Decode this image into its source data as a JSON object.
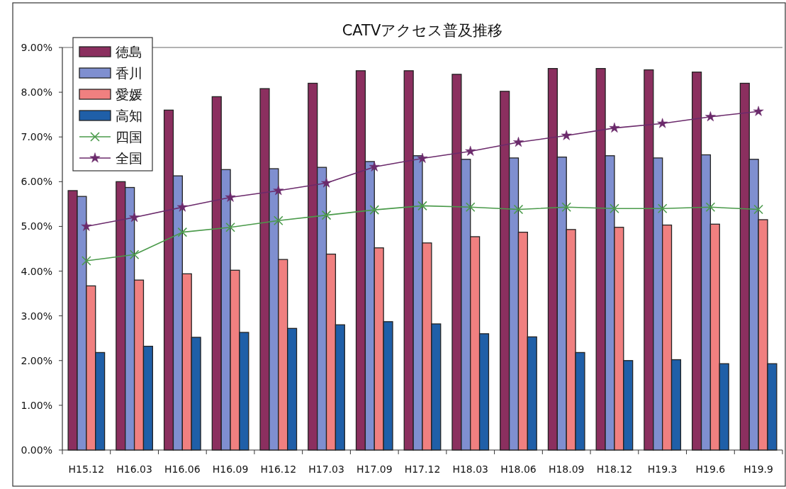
{
  "chart_data": {
    "type": "bar",
    "title": "CATVアクセス普及推移",
    "categories": [
      "H15.12",
      "H16.03",
      "H16.06",
      "H16.09",
      "H16.12",
      "H17.03",
      "H17.09",
      "H17.12",
      "H18.03",
      "H18.06",
      "H18.09",
      "H18.12",
      "H19.3",
      "H19.6",
      "H19.9"
    ],
    "series": [
      {
        "name": "徳島",
        "color": "#8b2f5f",
        "values": [
          5.8,
          6.0,
          7.6,
          7.9,
          8.08,
          8.2,
          8.48,
          8.48,
          8.4,
          8.02,
          8.53,
          8.53,
          8.5,
          8.45,
          8.2
        ]
      },
      {
        "name": "香川",
        "color": "#7f8fd0",
        "values": [
          5.67,
          5.87,
          6.13,
          6.27,
          6.29,
          6.32,
          6.45,
          6.58,
          6.5,
          6.53,
          6.55,
          6.58,
          6.53,
          6.6,
          6.5
        ]
      },
      {
        "name": "愛媛",
        "color": "#f08080",
        "values": [
          3.67,
          3.8,
          3.94,
          4.02,
          4.26,
          4.38,
          4.52,
          4.63,
          4.77,
          4.87,
          4.93,
          4.98,
          5.03,
          5.05,
          5.15
        ]
      },
      {
        "name": "高知",
        "color": "#1f5fa8",
        "values": [
          2.18,
          2.32,
          2.52,
          2.63,
          2.72,
          2.8,
          2.87,
          2.82,
          2.6,
          2.53,
          2.18,
          2.0,
          2.02,
          1.93,
          1.93
        ]
      },
      {
        "name": "四国",
        "type": "line",
        "marker": "cross",
        "color": "#4a9a4a",
        "values": [
          4.23,
          4.37,
          4.87,
          4.98,
          5.13,
          5.25,
          5.37,
          5.46,
          5.43,
          5.38,
          5.43,
          5.4,
          5.4,
          5.43,
          5.38
        ]
      },
      {
        "name": "全国",
        "type": "line",
        "marker": "star",
        "color": "#6b2a6b",
        "values": [
          5.0,
          5.2,
          5.43,
          5.65,
          5.8,
          5.97,
          6.33,
          6.52,
          6.68,
          6.88,
          7.03,
          7.2,
          7.3,
          7.45,
          7.57
        ]
      }
    ],
    "ylim": [
      0,
      9
    ],
    "yticks": [
      {
        "value": 0,
        "label": "0.00%"
      },
      {
        "value": 1,
        "label": "1.00%"
      },
      {
        "value": 2,
        "label": "2.00%"
      },
      {
        "value": 3,
        "label": "3.00%"
      },
      {
        "value": 4,
        "label": "4.00%"
      },
      {
        "value": 5,
        "label": "5.00%"
      },
      {
        "value": 6,
        "label": "6.00%"
      },
      {
        "value": 7,
        "label": "7.00%"
      },
      {
        "value": 8,
        "label": "8.00%"
      },
      {
        "value": 9,
        "label": "9.00%"
      }
    ],
    "legend": "top left"
  }
}
